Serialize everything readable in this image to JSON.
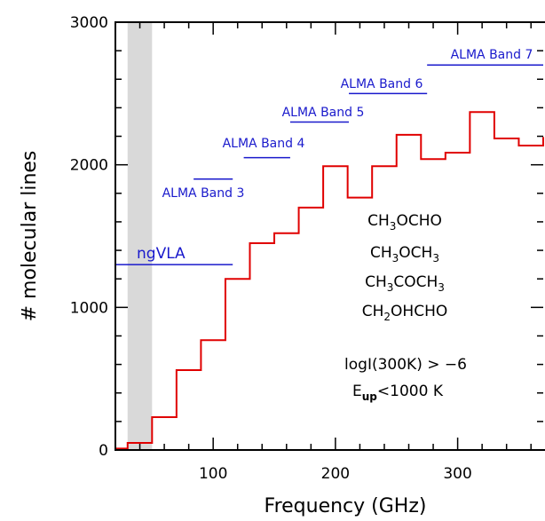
{
  "chart_data": {
    "type": "line",
    "title": "",
    "xlabel": "Frequency (GHz)",
    "ylabel": "# molecular lines",
    "xlim": [
      20,
      370
    ],
    "ylim": [
      0,
      3000
    ],
    "x_major_ticks": [
      100,
      200,
      300
    ],
    "y_major_ticks": [
      0,
      1000,
      2000,
      3000
    ],
    "x_tick_labels": [
      "100",
      "200",
      "300"
    ],
    "y_tick_labels": [
      "0",
      "1000",
      "2000",
      "3000"
    ],
    "grid": false,
    "shaded_region": {
      "x_start": 30,
      "x_end": 50,
      "color": "#d9d9d9"
    },
    "histogram": {
      "name": "",
      "color": "#e00000",
      "bin_edges": [
        20,
        30,
        50,
        70,
        90,
        110,
        130,
        150,
        170,
        190,
        210,
        230,
        250,
        270,
        290,
        310,
        330,
        350,
        370
      ],
      "values": [
        10,
        50,
        230,
        560,
        770,
        1200,
        1450,
        1520,
        1700,
        1990,
        1770,
        1990,
        2210,
        2040,
        2085,
        2370,
        2185,
        2135,
        2195
      ]
    },
    "bands": [
      {
        "label": "ngVLA",
        "x_start": 20,
        "x_end": 116,
        "y": 1300
      },
      {
        "label": "ALMA Band 3",
        "x_start": 84,
        "x_end": 116,
        "y": 1900
      },
      {
        "label": "ALMA Band 4",
        "x_start": 125,
        "x_end": 163,
        "y": 2050
      },
      {
        "label": "ALMA Band 5",
        "x_start": 163,
        "x_end": 211,
        "y": 2300
      },
      {
        "label": "ALMA Band 6",
        "x_start": 211,
        "x_end": 275,
        "y": 2500
      },
      {
        "label": "ALMA Band 7",
        "x_start": 275,
        "x_end": 373,
        "y": 2700
      }
    ],
    "molecules": [
      {
        "main": "CH",
        "sub": "3",
        "rest": "OCHO",
        "sub2": "",
        "rest2": ""
      },
      {
        "main": "CH",
        "sub": "3",
        "rest": "OCH",
        "sub2": "3",
        "rest2": ""
      },
      {
        "main": "CH",
        "sub": "3",
        "rest": "COCH",
        "sub2": "3",
        "rest2": ""
      },
      {
        "main": "CH",
        "sub": "2",
        "rest": "OHCHO",
        "sub2": "",
        "rest2": ""
      }
    ],
    "annotations": {
      "intensity_cut": "logI(300K) > −6",
      "eup_prefix": "E",
      "eup_sub": "up",
      "eup_suffix": "<1000 K"
    }
  }
}
